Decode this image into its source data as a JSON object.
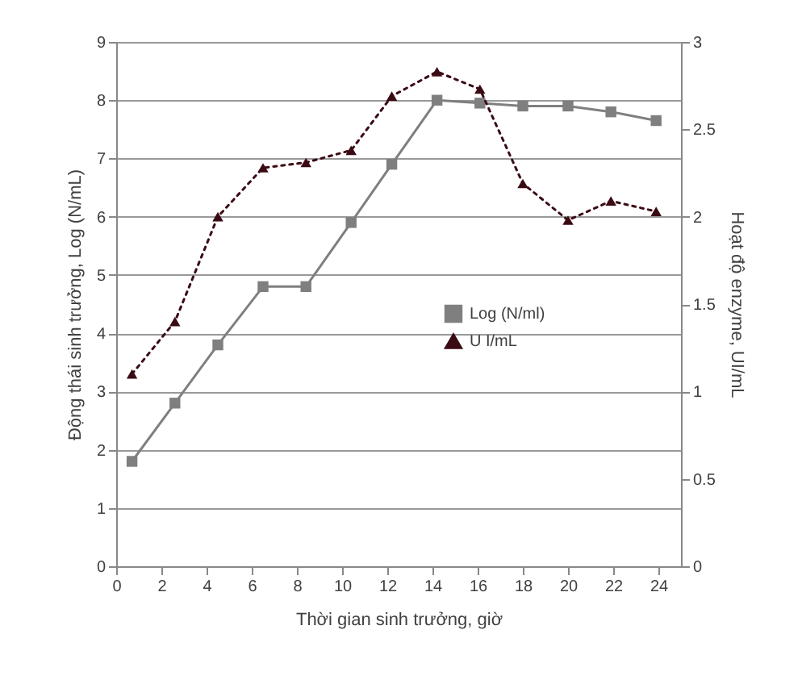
{
  "chart_data": {
    "type": "line",
    "xlabel": "Thời gian sinh trưởng, giờ",
    "ylabel": "Động thái sinh trưởng, Log (N/mL)",
    "y2label": "Hoạt độ enzyme, UI/mL",
    "x": [
      0.7,
      2.6,
      4.5,
      6.5,
      8.4,
      10.4,
      12.2,
      14.2,
      16.1,
      18,
      20,
      21.9,
      23.9
    ],
    "series": [
      {
        "name": "Log (N/ml)",
        "color": "#7f7f7f",
        "marker": "square",
        "line_style": "solid",
        "values": [
          1.8,
          2.8,
          3.8,
          4.8,
          4.8,
          5.9,
          6.9,
          8.0,
          7.95,
          7.9,
          7.9,
          7.8,
          7.65
        ]
      },
      {
        "name": "U I/mL",
        "color": "#3b0b14",
        "marker": "triangle",
        "line_style": "dotted",
        "axis": "y2",
        "values": [
          1.1,
          1.4,
          2.0,
          2.28,
          2.31,
          2.38,
          2.69,
          2.83,
          2.73,
          2.19,
          1.98,
          2.09,
          2.03
        ]
      }
    ],
    "xlim": [
      0,
      25
    ],
    "xticks": [
      0,
      2,
      4,
      6,
      8,
      10,
      12,
      14,
      16,
      18,
      20,
      22,
      24
    ],
    "ylim": [
      0,
      9
    ],
    "yticks": [
      0,
      1,
      2,
      3,
      4,
      5,
      6,
      7,
      8,
      9
    ],
    "y2lim": [
      0,
      3
    ],
    "y2ticks": [
      0,
      0.5,
      1,
      1.5,
      2,
      2.5,
      3
    ],
    "grid": "y",
    "legend": "right"
  }
}
